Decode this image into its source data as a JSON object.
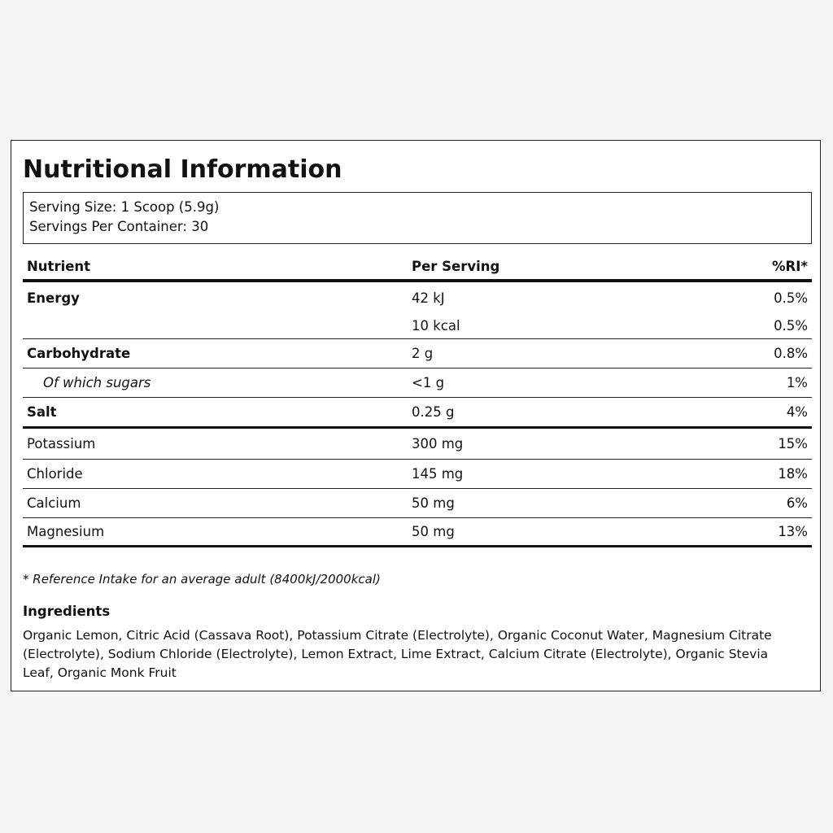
{
  "title": "Nutritional Information",
  "serving": {
    "size": "Serving Size: 1 Scoop (5.9g)",
    "per_container": "Servings Per Container: 30"
  },
  "table": {
    "headers": {
      "nutrient": "Nutrient",
      "per_serving": "Per Serving",
      "ri": "%RI*"
    },
    "rows": [
      {
        "nutrient": "Energy",
        "amount": "42 kJ",
        "ri": "0.5%"
      },
      {
        "nutrient": "",
        "amount": "10 kcal",
        "ri": "0.5%"
      },
      {
        "nutrient": "Carbohydrate",
        "amount": "2 g",
        "ri": "0.8%"
      },
      {
        "nutrient": "Of which sugars",
        "amount": "<1 g",
        "ri": "1%"
      },
      {
        "nutrient": "Salt",
        "amount": "0.25 g",
        "ri": "4%"
      },
      {
        "nutrient": "Potassium",
        "amount": "300 mg",
        "ri": "15%"
      },
      {
        "nutrient": "Chloride",
        "amount": "145 mg",
        "ri": "18%"
      },
      {
        "nutrient": "Calcium",
        "amount": "50 mg",
        "ri": "6%"
      },
      {
        "nutrient": "Magnesium",
        "amount": "50 mg",
        "ri": "13%"
      }
    ]
  },
  "footnote": "* Reference Intake for an average adult (8400kJ/2000kcal)",
  "ingredients": {
    "title": "Ingredients",
    "text": "Organic Lemon, Citric Acid (Cassava Root), Potassium Citrate (Electrolyte), Organic Coconut Water, Magnesium Citrate (Electrolyte), Sodium Chloride (Electrolyte), Lemon Extract, Lime Extract, Calcium Citrate (Electrolyte), Organic Stevia Leaf, Organic Monk Fruit"
  }
}
